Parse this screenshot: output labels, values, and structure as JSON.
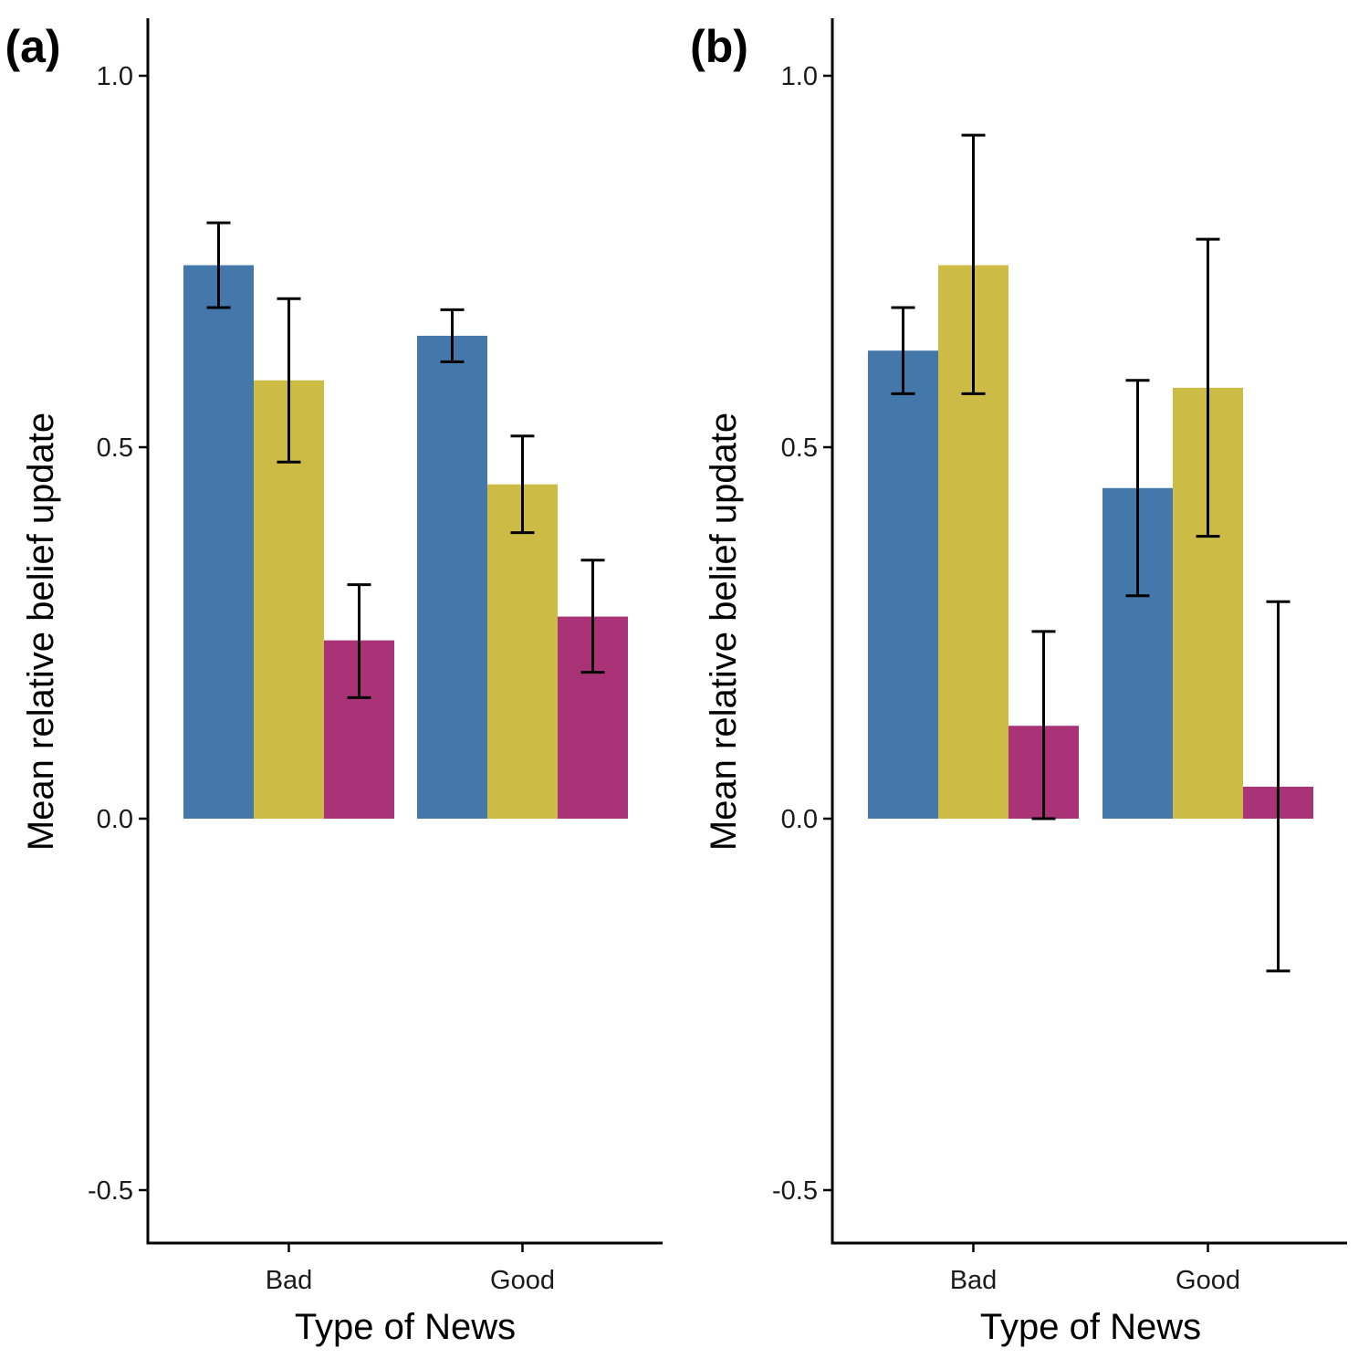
{
  "colors": {
    "series": [
      "#4477aa",
      "#ccbb44",
      "#aa3377"
    ],
    "error_bar": "#000000",
    "axis": "#000000"
  },
  "chart_data": [
    {
      "type": "bar",
      "panel_label": "(a)",
      "xlabel": "Type of News",
      "ylabel": "Mean relative belief update",
      "ylim": [
        -0.57,
        1.08
      ],
      "yticks": [
        -0.5,
        0.0,
        0.5,
        1.0
      ],
      "ytick_labels": [
        "-0.5",
        "0.0",
        "0.5",
        "1.0"
      ],
      "categories": [
        "Bad",
        "Good"
      ],
      "series": [
        {
          "values": [
            0.745,
            0.65
          ],
          "error_low": [
            0.688,
            0.615
          ],
          "error_high": [
            0.802,
            0.685
          ]
        },
        {
          "values": [
            0.59,
            0.45
          ],
          "error_low": [
            0.48,
            0.385
          ],
          "error_high": [
            0.7,
            0.515
          ]
        },
        {
          "values": [
            0.24,
            0.272
          ],
          "error_low": [
            0.163,
            0.197
          ],
          "error_high": [
            0.315,
            0.348
          ]
        }
      ]
    },
    {
      "type": "bar",
      "panel_label": "(b)",
      "xlabel": "Type of News",
      "ylabel": "Mean relative belief update",
      "ylim": [
        -0.57,
        1.08
      ],
      "yticks": [
        -0.5,
        0.0,
        0.5,
        1.0
      ],
      "ytick_labels": [
        "-0.5",
        "0.0",
        "0.5",
        "1.0"
      ],
      "categories": [
        "Bad",
        "Good"
      ],
      "series": [
        {
          "values": [
            0.63,
            0.445
          ],
          "error_low": [
            0.572,
            0.3
          ],
          "error_high": [
            0.688,
            0.59
          ]
        },
        {
          "values": [
            0.745,
            0.58
          ],
          "error_low": [
            0.572,
            0.38
          ],
          "error_high": [
            0.92,
            0.78
          ]
        },
        {
          "values": [
            0.125,
            0.043
          ],
          "error_low": [
            0.0,
            -0.205
          ],
          "error_high": [
            0.252,
            0.292
          ]
        }
      ]
    }
  ]
}
